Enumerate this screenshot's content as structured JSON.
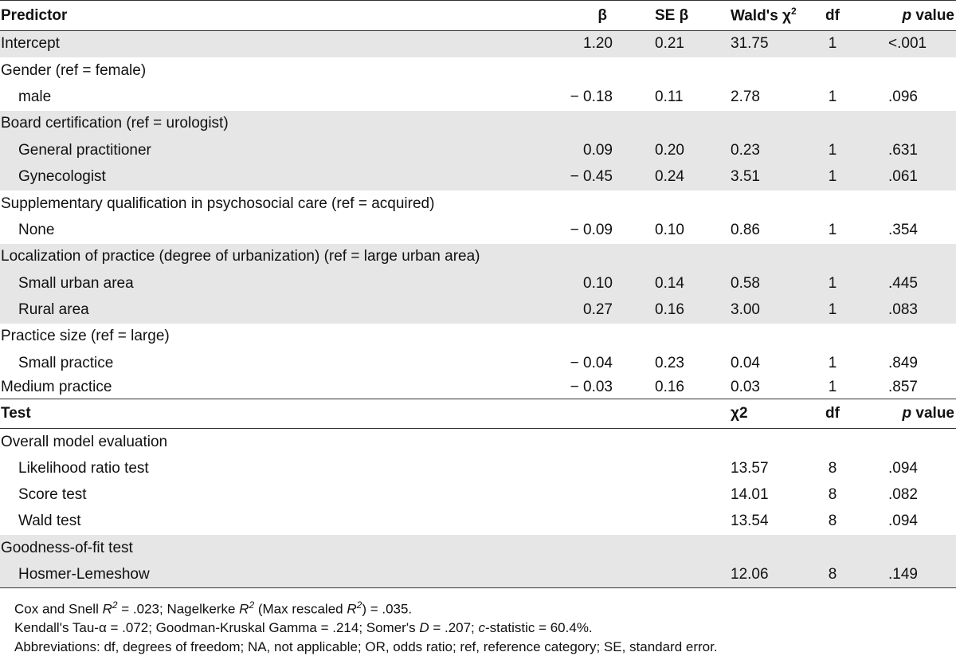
{
  "header": {
    "predictor": "Predictor",
    "beta": "β",
    "se_beta": "SE β",
    "wald": "Wald's χ",
    "wald_sup": "2",
    "df": "df",
    "p_value_p": "p",
    "p_value_rest": " value"
  },
  "rows": [
    {
      "label": "Intercept",
      "beta": "1.20",
      "se": "0.21",
      "chi": "31.75",
      "df": "1",
      "p": "<.001"
    },
    {
      "label": "Gender (ref = female)"
    },
    {
      "label": "male",
      "beta": "− 0.18",
      "se": "0.11",
      "chi": "2.78",
      "df": "1",
      "p": ".096"
    },
    {
      "label": "Board certification (ref = urologist)"
    },
    {
      "label": "General practitioner",
      "beta": "0.09",
      "se": "0.20",
      "chi": "0.23",
      "df": "1",
      "p": ".631"
    },
    {
      "label": "Gynecologist",
      "beta": "− 0.45",
      "se": "0.24",
      "chi": "3.51",
      "df": "1",
      "p": ".061"
    },
    {
      "label": "Supplementary qualification in psychosocial care (ref = acquired)"
    },
    {
      "label": "None",
      "beta": "− 0.09",
      "se": "0.10",
      "chi": "0.86",
      "df": "1",
      "p": ".354"
    },
    {
      "label": "Localization of practice (degree of urbanization) (ref = large urban area)"
    },
    {
      "label": "Small urban area",
      "beta": "0.10",
      "se": "0.14",
      "chi": "0.58",
      "df": "1",
      "p": ".445"
    },
    {
      "label": "Rural area",
      "beta": "0.27",
      "se": "0.16",
      "chi": "3.00",
      "df": "1",
      "p": ".083"
    },
    {
      "label": "Practice size (ref = large)"
    },
    {
      "label": "Small practice",
      "beta": "− 0.04",
      "se": "0.23",
      "chi": "0.04",
      "df": "1",
      "p": ".849"
    },
    {
      "label": "Medium practice",
      "beta": "− 0.03",
      "se": "0.16",
      "chi": "0.03",
      "df": "1",
      "p": ".857"
    }
  ],
  "test_header": {
    "test": "Test",
    "chi": "χ2",
    "df": "df",
    "p_value_p": "p",
    "p_value_rest": " value"
  },
  "test_rows": [
    {
      "label": "Overall model evaluation"
    },
    {
      "label": "Likelihood ratio test",
      "chi": "13.57",
      "df": "8",
      "p": ".094"
    },
    {
      "label": "Score test",
      "chi": "14.01",
      "df": "8",
      "p": ".082"
    },
    {
      "label": "Wald test",
      "chi": "13.54",
      "df": "8",
      "p": ".094"
    },
    {
      "label": "Goodness-of-fit test"
    },
    {
      "label": "Hosmer-Lemeshow",
      "chi": "12.06",
      "df": "8",
      "p": ".149"
    }
  ],
  "notes": {
    "line1": {
      "a": "Cox and Snell ",
      "r1": "R",
      "s1": "2",
      "b": " = .023; Nagelkerke ",
      "r2": "R",
      "s2": "2",
      "c": " (Max rescaled ",
      "r3": "R",
      "s3": "2",
      "d": ") = .035."
    },
    "line2": {
      "a": "Kendall's Tau-α = .072; Goodman-Kruskal Gamma = .214; Somer's ",
      "dvar": "D",
      "b": " = .207; ",
      "cvar": "c",
      "c": "-statistic = 60.4%."
    },
    "line3": "Abbreviations: df, degrees of freedom; NA, not applicable; OR, odds ratio; ref, reference category; SE, standard error."
  }
}
